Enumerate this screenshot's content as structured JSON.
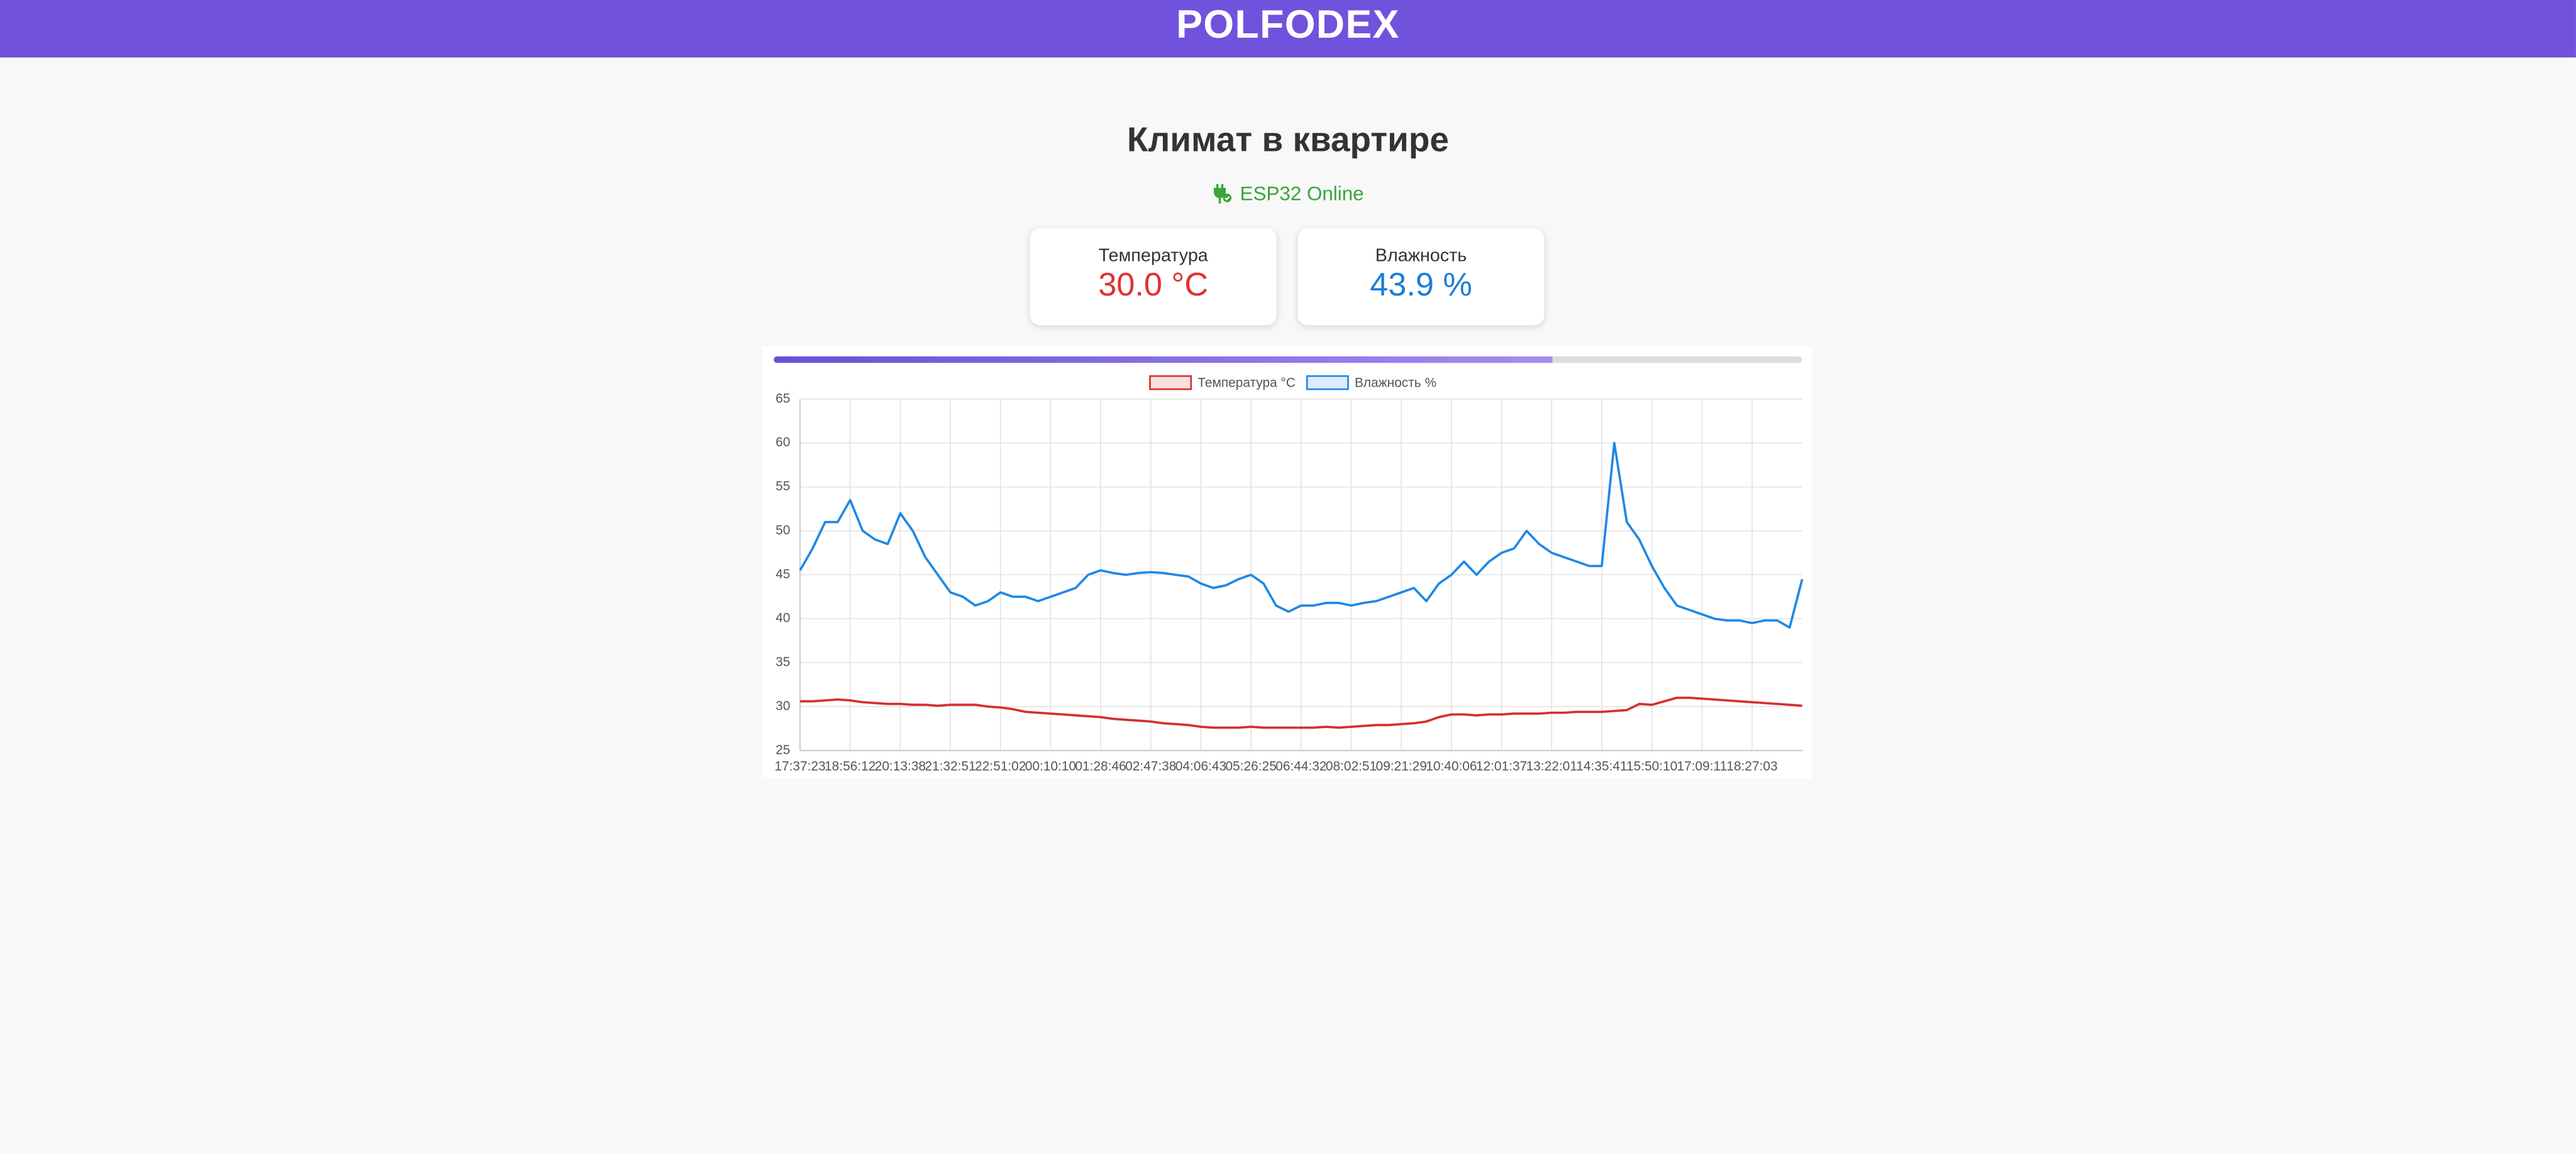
{
  "header": {
    "logo": "POLFODEX"
  },
  "title": "Климат в квартире",
  "status": "ESP32 Online",
  "cards": [
    {
      "label": "Температура",
      "value": "30.0 °C"
    },
    {
      "label": "Влажность",
      "value": "43.9 %"
    }
  ],
  "chart_data": {
    "type": "line",
    "categories": [
      "17:37:23",
      null,
      null,
      null,
      "18:56:12",
      null,
      null,
      null,
      "20:13:38",
      null,
      null,
      null,
      "21:32:51",
      null,
      null,
      null,
      "22:51:02",
      null,
      null,
      null,
      "00:10:10",
      null,
      null,
      null,
      "01:28:46",
      null,
      null,
      null,
      "02:47:38",
      null,
      null,
      null,
      "04:06:43",
      null,
      null,
      null,
      "05:26:25",
      null,
      null,
      null,
      "06:44:32",
      null,
      null,
      null,
      "08:02:51",
      null,
      null,
      null,
      "09:21:29",
      null,
      null,
      null,
      "10:40:06",
      null,
      null,
      null,
      "12:01:37",
      null,
      null,
      null,
      "13:22:01",
      null,
      null,
      null,
      "14:35:41",
      null,
      null,
      null,
      "15:50:10",
      null,
      null,
      null,
      "17:09:11",
      null,
      null,
      null,
      "18:27:03",
      null,
      null,
      null,
      null
    ],
    "series": [
      {
        "name": "Температура °C",
        "color": "#d32f2f",
        "values": [
          30.6,
          30.6,
          30.7,
          30.8,
          30.7,
          30.5,
          30.4,
          30.3,
          30.3,
          30.2,
          30.2,
          30.1,
          30.2,
          30.2,
          30.2,
          30.0,
          29.9,
          29.7,
          29.4,
          29.3,
          29.2,
          29.1,
          29.0,
          28.9,
          28.8,
          28.6,
          28.5,
          28.4,
          28.3,
          28.1,
          28.0,
          27.9,
          27.7,
          27.6,
          27.6,
          27.6,
          27.7,
          27.6,
          27.6,
          27.6,
          27.6,
          27.6,
          27.7,
          27.6,
          27.7,
          27.8,
          27.9,
          27.9,
          28.0,
          28.1,
          28.3,
          28.8,
          29.1,
          29.1,
          29.0,
          29.1,
          29.1,
          29.2,
          29.2,
          29.2,
          29.3,
          29.3,
          29.4,
          29.4,
          29.4,
          29.5,
          29.6,
          30.3,
          30.2,
          30.6,
          31.0,
          31.0,
          30.9,
          30.8,
          30.7,
          30.6,
          30.5,
          30.4,
          30.3,
          30.2,
          30.1
        ]
      },
      {
        "name": "Влажность %",
        "color": "#1e88e5",
        "values": [
          45.5,
          48,
          51,
          51,
          53.5,
          50,
          49,
          48.5,
          52,
          50,
          47,
          45,
          43,
          42.5,
          41.5,
          42,
          43,
          42.5,
          42.5,
          42,
          42.5,
          43,
          43.5,
          45,
          45.5,
          45.2,
          45,
          45.2,
          45.3,
          45.2,
          45,
          44.8,
          44,
          43.5,
          43.8,
          44.5,
          45,
          44,
          41.5,
          40.8,
          41.5,
          41.5,
          41.8,
          41.8,
          41.5,
          41.8,
          42,
          42.5,
          43,
          43.5,
          42,
          44,
          45,
          46.5,
          45,
          46.5,
          47.5,
          48,
          50,
          48.5,
          47.5,
          47,
          46.5,
          46,
          46,
          60,
          51,
          49,
          46,
          43.5,
          41.5,
          41,
          40.5,
          40,
          39.8,
          39.8,
          39.5,
          39.8,
          39.8,
          39,
          44.5
        ]
      }
    ],
    "ylim": [
      25,
      65
    ],
    "yticks": [
      25,
      30,
      35,
      40,
      45,
      50,
      55,
      60,
      65
    ],
    "grid": true
  }
}
